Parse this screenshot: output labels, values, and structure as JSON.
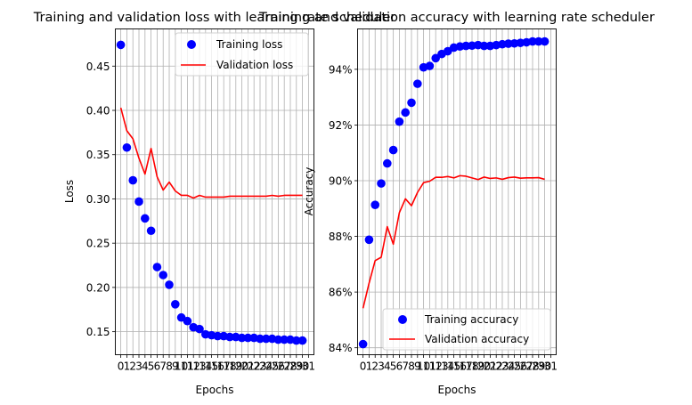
{
  "chart_data": [
    {
      "type": "scatter",
      "title": "Training and validation loss with learning rate scheduler",
      "xlabel": "Epochs",
      "ylabel": "Loss",
      "xlim": [
        -0.9,
        31.9
      ],
      "ylim": [
        0.124,
        0.492
      ],
      "x_ticks": [
        0,
        1,
        2,
        3,
        4,
        5,
        6,
        7,
        8,
        9,
        10,
        11,
        12,
        13,
        14,
        15,
        16,
        17,
        18,
        19,
        20,
        21,
        22,
        23,
        24,
        25,
        26,
        27,
        28,
        29,
        30,
        31
      ],
      "y_ticks": [
        0.15,
        0.2,
        0.25,
        0.3,
        0.35,
        0.4,
        0.45
      ],
      "y_tick_labels": [
        "0.15",
        "0.20",
        "0.25",
        "0.30",
        "0.35",
        "0.40",
        "0.45"
      ],
      "grid": true,
      "legend_position": "top-right",
      "series": [
        {
          "name": "Training loss",
          "style": "points",
          "color": "#0000ff",
          "x": [
            0,
            1,
            2,
            3,
            4,
            5,
            6,
            7,
            8,
            9,
            10,
            11,
            12,
            13,
            14,
            15,
            16,
            17,
            18,
            19,
            20,
            21,
            22,
            23,
            24,
            25,
            26,
            27,
            28,
            29,
            30
          ],
          "y": [
            0.474,
            0.358,
            0.321,
            0.297,
            0.278,
            0.264,
            0.223,
            0.214,
            0.203,
            0.181,
            0.166,
            0.162,
            0.155,
            0.153,
            0.147,
            0.146,
            0.145,
            0.145,
            0.144,
            0.144,
            0.143,
            0.143,
            0.143,
            0.142,
            0.142,
            0.142,
            0.141,
            0.141,
            0.141,
            0.14,
            0.14
          ]
        },
        {
          "name": "Validation loss",
          "style": "line",
          "color": "#ff0000",
          "x": [
            0,
            1,
            2,
            3,
            4,
            5,
            6,
            7,
            8,
            9,
            10,
            11,
            12,
            13,
            14,
            15,
            16,
            17,
            18,
            19,
            20,
            21,
            22,
            23,
            24,
            25,
            26,
            27,
            28,
            29,
            30
          ],
          "y": [
            0.403,
            0.377,
            0.368,
            0.346,
            0.328,
            0.357,
            0.325,
            0.31,
            0.319,
            0.309,
            0.304,
            0.304,
            0.301,
            0.304,
            0.302,
            0.302,
            0.302,
            0.302,
            0.303,
            0.303,
            0.303,
            0.303,
            0.303,
            0.303,
            0.303,
            0.304,
            0.303,
            0.304,
            0.304,
            0.304,
            0.304
          ]
        }
      ]
    },
    {
      "type": "scatter",
      "title": "Training and validation accuracy with learning rate scheduler",
      "xlabel": "Epochs",
      "ylabel": "Accuracy",
      "xlim": [
        -0.9,
        31.9
      ],
      "ylim": [
        0.8375,
        0.9545
      ],
      "x_ticks": [
        0,
        1,
        2,
        3,
        4,
        5,
        6,
        7,
        8,
        9,
        10,
        11,
        12,
        13,
        14,
        15,
        16,
        17,
        18,
        19,
        20,
        21,
        22,
        23,
        24,
        25,
        26,
        27,
        28,
        29,
        30,
        31
      ],
      "y_ticks": [
        0.84,
        0.86,
        0.88,
        0.9,
        0.92,
        0.94
      ],
      "y_tick_labels": [
        "84%",
        "86%",
        "88%",
        "90%",
        "92%",
        "94%"
      ],
      "grid": true,
      "legend_position": "bottom-right",
      "series": [
        {
          "name": "Training accuracy",
          "style": "points",
          "color": "#0000ff",
          "x": [
            0,
            1,
            2,
            3,
            4,
            5,
            6,
            7,
            8,
            9,
            10,
            11,
            12,
            13,
            14,
            15,
            16,
            17,
            18,
            19,
            20,
            21,
            22,
            23,
            24,
            25,
            26,
            27,
            28,
            29,
            30
          ],
          "y": [
            0.8413,
            0.8788,
            0.8913,
            0.899,
            0.9062,
            0.911,
            0.9212,
            0.9245,
            0.928,
            0.9348,
            0.9407,
            0.9412,
            0.944,
            0.9455,
            0.9465,
            0.9478,
            0.9482,
            0.9484,
            0.9485,
            0.9487,
            0.9484,
            0.9484,
            0.9487,
            0.949,
            0.9492,
            0.9493,
            0.9495,
            0.9497,
            0.95,
            0.95,
            0.95
          ]
        },
        {
          "name": "Validation accuracy",
          "style": "line",
          "color": "#ff0000",
          "x": [
            0,
            1,
            2,
            3,
            4,
            5,
            6,
            7,
            8,
            9,
            10,
            11,
            12,
            13,
            14,
            15,
            16,
            17,
            18,
            19,
            20,
            21,
            22,
            23,
            24,
            25,
            26,
            27,
            28,
            29,
            30
          ],
          "y": [
            0.8542,
            0.8632,
            0.8713,
            0.8725,
            0.8835,
            0.8772,
            0.8885,
            0.8935,
            0.891,
            0.8958,
            0.8993,
            0.8998,
            0.9012,
            0.9012,
            0.9015,
            0.901,
            0.9018,
            0.9016,
            0.901,
            0.9004,
            0.9013,
            0.9008,
            0.901,
            0.9005,
            0.9011,
            0.9013,
            0.9009,
            0.901,
            0.901,
            0.9011,
            0.9005
          ]
        }
      ]
    }
  ]
}
